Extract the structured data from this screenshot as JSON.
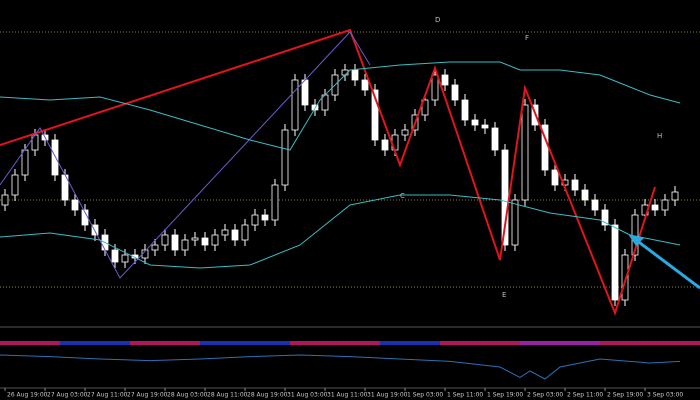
{
  "chart_data": [
    {
      "type": "candlestick",
      "x": [
        0,
        1,
        2,
        3,
        4,
        5,
        6,
        7,
        8,
        9,
        10,
        11,
        12,
        13,
        14,
        15,
        16,
        17,
        18,
        19,
        20,
        21,
        22,
        23,
        24,
        25,
        26,
        27,
        28,
        29,
        30,
        31,
        32,
        33,
        34,
        35,
        36,
        37,
        38,
        39,
        40,
        41,
        42,
        43,
        44,
        45,
        46,
        47,
        48,
        49,
        50,
        51,
        52,
        53,
        54,
        55,
        56,
        57,
        58,
        59,
        60,
        61,
        62,
        63,
        64,
        65,
        66,
        67
      ],
      "open": [
        120,
        130,
        150,
        175,
        190,
        185,
        150,
        125,
        115,
        100,
        90,
        75,
        63,
        70,
        67,
        75,
        80,
        90,
        75,
        85,
        87,
        80,
        90,
        95,
        85,
        100,
        110,
        105,
        140,
        195,
        245,
        220,
        215,
        230,
        250,
        255,
        245,
        235,
        185,
        175,
        190,
        195,
        210,
        225,
        250,
        240,
        225,
        205,
        200,
        197,
        175,
        80,
        125,
        220,
        200,
        155,
        140,
        145,
        135,
        125,
        115,
        100,
        25,
        70,
        110,
        120,
        115,
        125
      ],
      "high": [
        136,
        156,
        181,
        196,
        196,
        191,
        156,
        131,
        121,
        106,
        96,
        81,
        76,
        76,
        81,
        86,
        96,
        96,
        91,
        93,
        93,
        96,
        101,
        101,
        106,
        116,
        116,
        146,
        201,
        251,
        251,
        226,
        236,
        256,
        261,
        261,
        251,
        241,
        191,
        196,
        201,
        216,
        231,
        256,
        256,
        246,
        231,
        211,
        206,
        203,
        181,
        131,
        226,
        226,
        206,
        161,
        151,
        151,
        141,
        131,
        121,
        106,
        76,
        116,
        126,
        126,
        131,
        139
      ],
      "low": [
        114,
        124,
        144,
        169,
        179,
        144,
        119,
        109,
        94,
        84,
        69,
        57,
        57,
        61,
        61,
        69,
        74,
        69,
        69,
        79,
        74,
        74,
        84,
        79,
        79,
        94,
        99,
        99,
        134,
        189,
        214,
        209,
        209,
        224,
        244,
        239,
        229,
        179,
        169,
        169,
        184,
        189,
        204,
        219,
        234,
        219,
        199,
        194,
        191,
        169,
        74,
        74,
        119,
        194,
        149,
        134,
        134,
        129,
        119,
        109,
        94,
        19,
        19,
        64,
        104,
        109,
        109,
        119
      ],
      "close": [
        130,
        150,
        175,
        190,
        185,
        150,
        125,
        115,
        100,
        90,
        75,
        63,
        70,
        67,
        75,
        80,
        90,
        75,
        85,
        87,
        80,
        90,
        95,
        85,
        100,
        110,
        105,
        140,
        195,
        245,
        220,
        215,
        230,
        250,
        255,
        245,
        235,
        185,
        175,
        190,
        195,
        210,
        225,
        250,
        240,
        225,
        205,
        200,
        197,
        175,
        80,
        125,
        220,
        200,
        155,
        140,
        145,
        135,
        125,
        115,
        100,
        25,
        70,
        110,
        120,
        115,
        125,
        133
      ],
      "bull_color": "#000000",
      "bear_color": "#ffffff",
      "wick_color": "#ffffff",
      "xlim": [
        -0.5,
        69.5
      ],
      "ylim": [
        0,
        325
      ],
      "xticks": [
        {
          "value": 0,
          "label": "26 Aug 19:00"
        },
        {
          "value": 4,
          "label": "27 Aug 03:00"
        },
        {
          "value": 8,
          "label": "27 Aug 11:00"
        },
        {
          "value": 12,
          "label": "27 Aug 19:00"
        },
        {
          "value": 16,
          "label": "28 Aug 03:00"
        },
        {
          "value": 20,
          "label": "28 Aug 11:00"
        },
        {
          "value": 24,
          "label": "28 Aug 19:00"
        },
        {
          "value": 28,
          "label": "31 Aug 03:00"
        },
        {
          "value": 32,
          "label": "31 Aug 11:00"
        },
        {
          "value": 36,
          "label": "31 Aug 19:00"
        },
        {
          "value": 40,
          "label": "1 Sep 03:00"
        },
        {
          "value": 44,
          "label": "1 Sep 11:00"
        },
        {
          "value": 48,
          "label": "1 Sep 19:00"
        },
        {
          "value": 52,
          "label": "2 Sep 03:00"
        },
        {
          "value": 56,
          "label": "2 Sep 11:00"
        },
        {
          "value": 60,
          "label": "2 Sep 19:00"
        },
        {
          "value": 64,
          "label": "3 Sep 03:00"
        }
      ],
      "overlays": [
        {
          "color": "#e0141e",
          "width": 2,
          "x": [
            -0.5,
            34.5,
            39.5,
            43,
            49.5,
            52,
            61,
            65
          ],
          "values": [
            180,
            295,
            160,
            257,
            65,
            237,
            12,
            138
          ]
        },
        {
          "color": "#6a5acd",
          "width": 1,
          "x": [
            -0.5,
            3.5,
            11.5,
            34.5,
            36.5
          ],
          "values": [
            140,
            197,
            47,
            293,
            260
          ]
        },
        {
          "color": "#3cbcc4",
          "width": 1,
          "x": [
            -0.5,
            4.5,
            9.5,
            14.5,
            19.5,
            24.5,
            28.5,
            31.5,
            34.5,
            39.5,
            44.5,
            49.5,
            51.5,
            55.5,
            59.5,
            64.5,
            67.5
          ],
          "values": [
            228,
            225,
            228,
            215,
            200,
            185,
            175,
            225,
            255,
            260,
            263,
            263,
            255,
            255,
            250,
            230,
            222
          ]
        },
        {
          "color": "#3cbcc4",
          "width": 1,
          "x": [
            -0.5,
            4.5,
            9.5,
            14.5,
            19.5,
            24.5,
            29.5,
            34.5,
            39.5,
            44.5,
            49.5,
            54.5,
            59.5,
            62.5,
            67.5
          ],
          "values": [
            88,
            92,
            85,
            60,
            57,
            60,
            80,
            120,
            130,
            130,
            125,
            112,
            105,
            90,
            80
          ]
        }
      ],
      "levels": [
        293,
        125,
        38
      ],
      "level_color": "#8a8a3a",
      "annotations": [
        "D",
        "F",
        "C",
        "H",
        "E"
      ]
    },
    {
      "type": "line",
      "color": "#2f6fb5",
      "x": [
        -0.5,
        4.5,
        9.5,
        14.5,
        19.5,
        24.5,
        29.5,
        34.5,
        39.5,
        44.5,
        49.5,
        51.5,
        52.5,
        54,
        55.5,
        59.5,
        64.5,
        67.5
      ],
      "values": [
        15,
        13,
        10,
        8,
        10,
        13,
        15,
        13,
        10,
        7,
        0,
        -13,
        -5,
        -15,
        0,
        10,
        5,
        7
      ],
      "xlim": [
        -0.5,
        69.5
      ],
      "ylim": [
        -25,
        25
      ]
    }
  ]
}
